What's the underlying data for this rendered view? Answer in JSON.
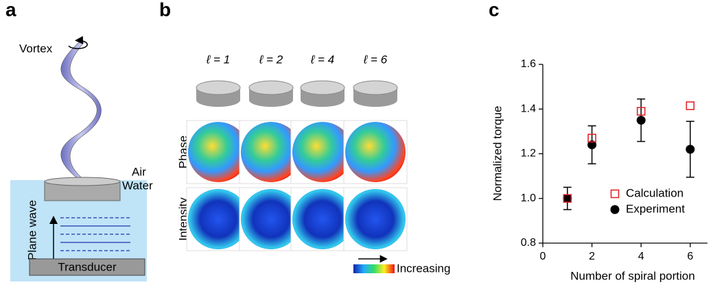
{
  "panels": {
    "a": {
      "label": "a",
      "vortex": "Vortex",
      "air": "Air",
      "water": "Water",
      "plane_wave": "Plane wave",
      "transducer": "Transducer"
    },
    "b": {
      "label": "b",
      "columns": [
        "ℓ = 1",
        "ℓ = 2",
        "ℓ = 4",
        "ℓ = 6"
      ],
      "rows": [
        "Phase",
        "Intensity"
      ],
      "colorbar_label": "Increasing"
    }
  },
  "chart_data": {
    "type": "scatter",
    "panel_label": "c",
    "x_label": "Number of spiral portion",
    "y_label": "Normalized torque",
    "xlim": [
      0,
      6.7
    ],
    "ylim": [
      0.8,
      1.6
    ],
    "xticks": [
      0,
      2,
      4,
      6
    ],
    "yticks": [
      0.8,
      {
        "value": 1.0,
        "label": "1.0"
      },
      1.2,
      1.4,
      1.6
    ],
    "series": [
      {
        "name": "Calculation",
        "color": "#e0262b",
        "marker": "square-open",
        "x": [
          1,
          2,
          4,
          6
        ],
        "values": [
          1.0,
          1.27,
          1.39,
          1.415
        ]
      },
      {
        "name": "Experiment",
        "color": "#000000",
        "marker": "circle",
        "x": [
          1,
          2,
          4,
          6
        ],
        "values": [
          1.0,
          1.24,
          1.35,
          1.22
        ],
        "errors": [
          0.05,
          0.085,
          0.095,
          0.125
        ]
      }
    ]
  }
}
